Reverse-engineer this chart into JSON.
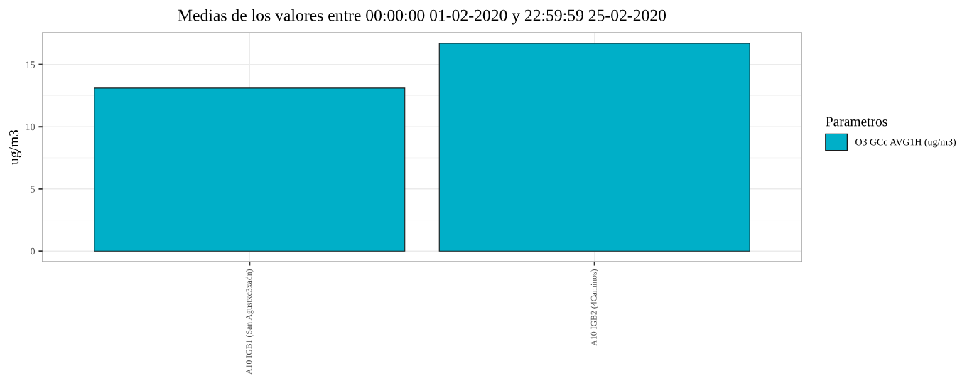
{
  "chart_data": {
    "type": "bar",
    "title": "Medias de los valores entre 00:00:00 01-02-2020 y 22:59:59 25-02-2020",
    "ylabel": "ug/m3",
    "legend_title": "Parametros",
    "categories": [
      "A10 IGB1 (San Agustxc3xadn)",
      "A10 IGB2 (4Caminos)"
    ],
    "series": [
      {
        "name": "O3 GCc AVG1H (ug/m3)",
        "color": "#00afc8",
        "values": [
          13.1,
          16.7
        ]
      }
    ],
    "ylim": [
      -0.84,
      17.55
    ],
    "yticks": [
      0,
      5,
      10,
      15
    ],
    "grid": true,
    "legend": "right"
  }
}
